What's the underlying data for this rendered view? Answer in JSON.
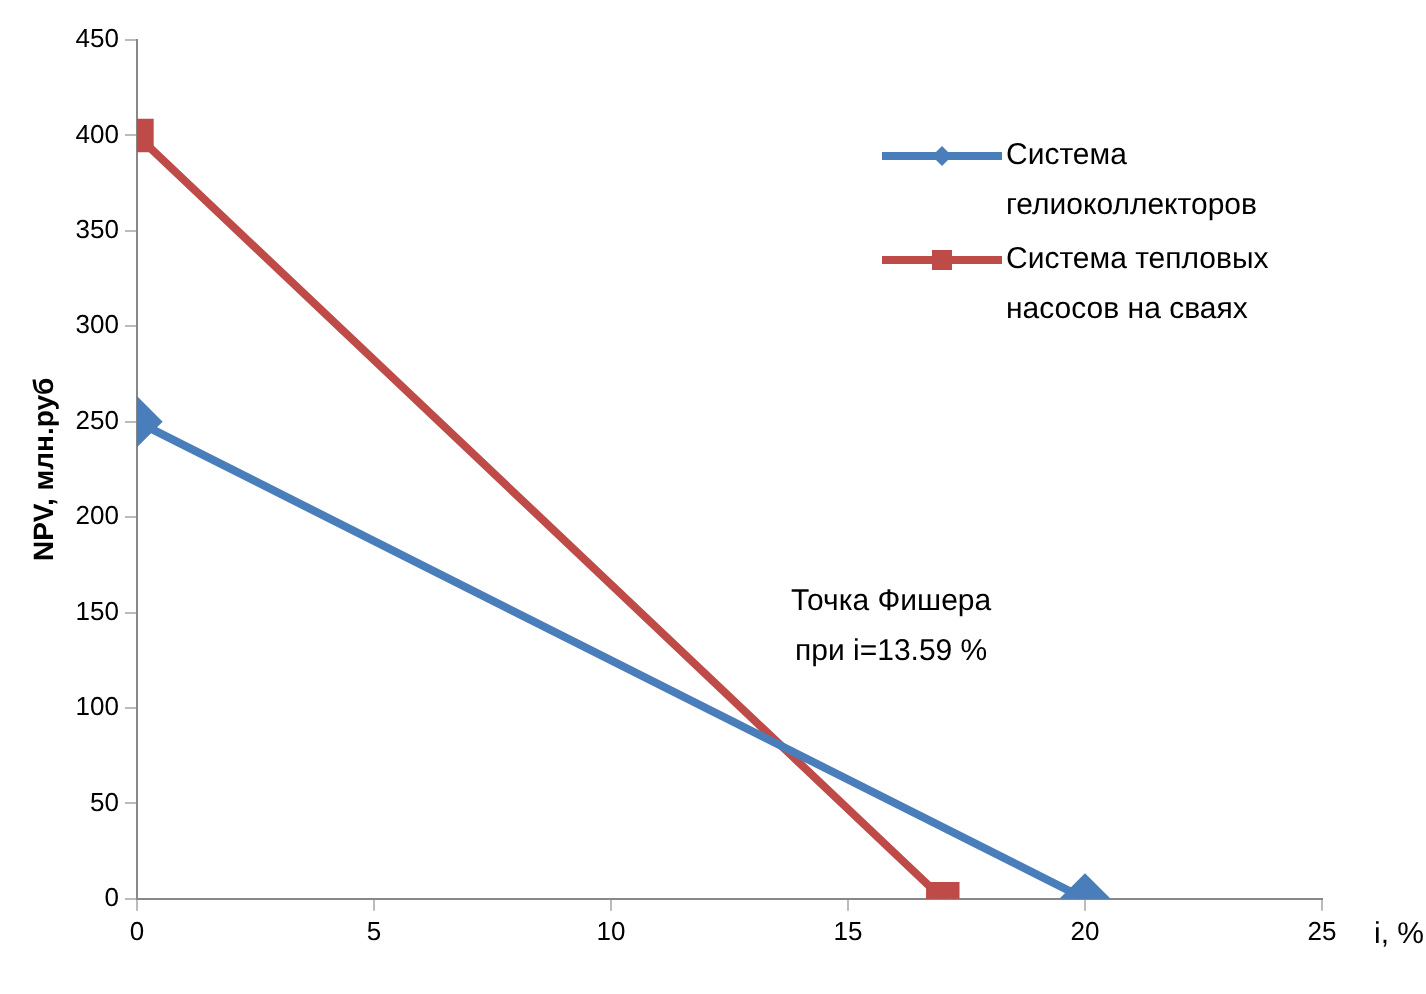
{
  "chart_data": {
    "type": "line",
    "xlabel": "i, %",
    "ylabel": "NPV, млн.руб",
    "xlim": [
      0,
      25
    ],
    "xticks": [
      0,
      5,
      10,
      15,
      20,
      25
    ],
    "ylim": [
      0,
      450
    ],
    "yticks": [
      0,
      50,
      100,
      150,
      200,
      250,
      300,
      350,
      400,
      450
    ],
    "grid": false,
    "legend": "top right",
    "line_style": "solid",
    "series": [
      {
        "name": "Система гелиоколлекторов",
        "color": "#4a7ebb",
        "marker": "diamond",
        "x": [
          0,
          20
        ],
        "values": [
          250,
          0
        ]
      },
      {
        "name": "Система тепловых насосов на сваях",
        "color": "#be4b48",
        "marker": "square",
        "x": [
          0,
          17
        ],
        "values": [
          400,
          0
        ]
      }
    ],
    "annotations": [
      {
        "text": "Точка Фишера при i=13.59 %",
        "x": 13.59,
        "y": 80
      }
    ]
  }
}
